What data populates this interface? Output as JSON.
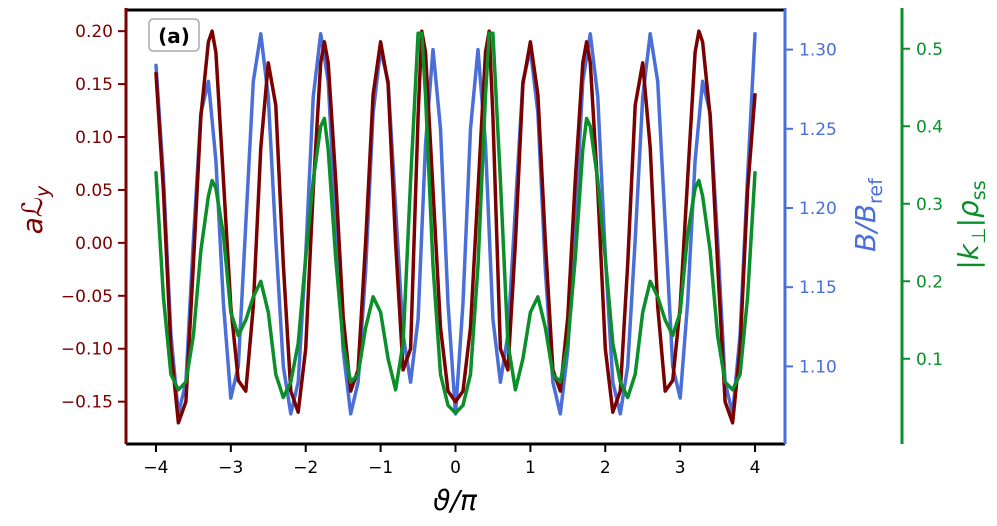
{
  "chart_data": {
    "type": "line",
    "panel_label": "(a)",
    "xlabel": "ϑ/π",
    "x_ticks": [
      -4,
      -3,
      -2,
      -1,
      0,
      1,
      2,
      3,
      4
    ],
    "x_tick_labels": [
      "−4",
      "−3",
      "−2",
      "−1",
      "0",
      "1",
      "2",
      "3",
      "4"
    ],
    "xlim": [
      -4.4,
      4.4
    ],
    "grid": false,
    "axes": [
      {
        "id": "left",
        "label_main": "a",
        "label_symbol": "ℒ",
        "label_sub": "y",
        "color": "#7b0000",
        "ylim": [
          -0.19,
          0.22
        ],
        "ticks": [
          -0.15,
          -0.1,
          -0.05,
          0.0,
          0.05,
          0.1,
          0.15,
          0.2
        ],
        "tick_labels": [
          "−0.15",
          "−0.10",
          "−0.05",
          "0.00",
          "0.05",
          "0.10",
          "0.15",
          "0.20"
        ]
      },
      {
        "id": "right1",
        "label_main": "B/B",
        "label_sub": "ref",
        "color": "#4a6fd8",
        "ylim": [
          1.051,
          1.325
        ],
        "ticks": [
          1.1,
          1.15,
          1.2,
          1.25,
          1.3
        ],
        "tick_labels": [
          "1.10",
          "1.15",
          "1.20",
          "1.25",
          "1.30"
        ]
      },
      {
        "id": "right2",
        "label_main": "|k",
        "label_perp": "⊥",
        "label_end": "|ρ",
        "label_sub": "ss",
        "color": "#0a8f2a",
        "ylim": [
          -0.01,
          0.55
        ],
        "ticks": [
          0.1,
          0.2,
          0.3,
          0.4,
          0.5
        ],
        "tick_labels": [
          "0.1",
          "0.2",
          "0.3",
          "0.4",
          "0.5"
        ]
      }
    ],
    "series": [
      {
        "id": "aLy",
        "axis": "left",
        "color": "#7b0000",
        "x": [
          -4.0,
          -3.9,
          -3.8,
          -3.7,
          -3.6,
          -3.5,
          -3.4,
          -3.3,
          -3.25,
          -3.2,
          -3.1,
          -3.0,
          -2.9,
          -2.8,
          -2.7,
          -2.6,
          -2.5,
          -2.4,
          -2.3,
          -2.2,
          -2.1,
          -2.0,
          -1.9,
          -1.8,
          -1.75,
          -1.7,
          -1.6,
          -1.5,
          -1.4,
          -1.3,
          -1.2,
          -1.1,
          -1.0,
          -0.9,
          -0.8,
          -0.7,
          -0.6,
          -0.5,
          -0.45,
          -0.4,
          -0.3,
          -0.2,
          -0.1,
          0.0,
          0.1,
          0.2,
          0.3,
          0.4,
          0.45,
          0.5,
          0.6,
          0.7,
          0.8,
          0.9,
          1.0,
          1.1,
          1.2,
          1.3,
          1.4,
          1.5,
          1.6,
          1.7,
          1.75,
          1.8,
          1.9,
          2.0,
          2.1,
          2.2,
          2.3,
          2.4,
          2.5,
          2.6,
          2.7,
          2.8,
          2.9,
          3.0,
          3.1,
          3.2,
          3.25,
          3.3,
          3.4,
          3.5,
          3.6,
          3.7,
          3.8,
          3.9,
          4.0
        ],
        "values": [
          0.16,
          0.05,
          -0.1,
          -0.17,
          -0.15,
          -0.02,
          0.12,
          0.19,
          0.2,
          0.18,
          0.06,
          -0.06,
          -0.13,
          -0.14,
          -0.06,
          0.09,
          0.17,
          0.13,
          -0.02,
          -0.14,
          -0.16,
          -0.1,
          0.05,
          0.17,
          0.19,
          0.17,
          0.06,
          -0.07,
          -0.14,
          -0.12,
          0.0,
          0.14,
          0.19,
          0.15,
          0.0,
          -0.12,
          -0.1,
          0.12,
          0.2,
          0.18,
          0.05,
          -0.08,
          -0.14,
          -0.15,
          -0.14,
          -0.08,
          0.05,
          0.18,
          0.2,
          0.12,
          -0.1,
          -0.12,
          0.0,
          0.15,
          0.19,
          0.14,
          0.0,
          -0.12,
          -0.14,
          -0.07,
          0.06,
          0.17,
          0.19,
          0.17,
          0.05,
          -0.1,
          -0.16,
          -0.14,
          -0.02,
          0.13,
          0.17,
          0.09,
          -0.06,
          -0.14,
          -0.13,
          -0.06,
          0.06,
          0.18,
          0.2,
          0.19,
          0.12,
          -0.02,
          -0.15,
          -0.17,
          -0.1,
          0.05,
          0.14
        ]
      },
      {
        "id": "B_over_Bref",
        "axis": "right1",
        "color": "#4a6fd8",
        "x": [
          -4.0,
          -3.9,
          -3.8,
          -3.7,
          -3.6,
          -3.5,
          -3.4,
          -3.3,
          -3.2,
          -3.1,
          -3.0,
          -2.9,
          -2.8,
          -2.7,
          -2.6,
          -2.5,
          -2.4,
          -2.3,
          -2.2,
          -2.1,
          -2.0,
          -1.9,
          -1.8,
          -1.7,
          -1.6,
          -1.5,
          -1.4,
          -1.3,
          -1.2,
          -1.1,
          -1.0,
          -0.9,
          -0.8,
          -0.7,
          -0.6,
          -0.5,
          -0.4,
          -0.3,
          -0.2,
          -0.1,
          0.0,
          0.1,
          0.2,
          0.3,
          0.4,
          0.5,
          0.6,
          0.7,
          0.8,
          0.9,
          1.0,
          1.1,
          1.2,
          1.3,
          1.4,
          1.5,
          1.6,
          1.7,
          1.8,
          1.9,
          2.0,
          2.1,
          2.2,
          2.3,
          2.4,
          2.5,
          2.6,
          2.7,
          2.8,
          2.9,
          3.0,
          3.1,
          3.2,
          3.3,
          3.4,
          3.5,
          3.6,
          3.7,
          3.8,
          3.9,
          4.0
        ],
        "values": [
          1.29,
          1.22,
          1.12,
          1.07,
          1.09,
          1.18,
          1.26,
          1.28,
          1.23,
          1.14,
          1.08,
          1.1,
          1.19,
          1.28,
          1.31,
          1.27,
          1.18,
          1.1,
          1.07,
          1.09,
          1.17,
          1.27,
          1.31,
          1.28,
          1.19,
          1.11,
          1.07,
          1.09,
          1.16,
          1.26,
          1.3,
          1.28,
          1.2,
          1.12,
          1.09,
          1.13,
          1.24,
          1.3,
          1.25,
          1.14,
          1.07,
          1.14,
          1.25,
          1.3,
          1.24,
          1.13,
          1.09,
          1.12,
          1.2,
          1.28,
          1.3,
          1.26,
          1.16,
          1.09,
          1.07,
          1.11,
          1.19,
          1.28,
          1.31,
          1.27,
          1.17,
          1.09,
          1.07,
          1.1,
          1.18,
          1.27,
          1.31,
          1.28,
          1.19,
          1.1,
          1.08,
          1.14,
          1.23,
          1.28,
          1.26,
          1.18,
          1.09,
          1.07,
          1.12,
          1.22,
          1.31
        ]
      },
      {
        "id": "k_perp_rho",
        "axis": "right2",
        "color": "#0a8f2a",
        "x": [
          -4.0,
          -3.9,
          -3.8,
          -3.7,
          -3.6,
          -3.5,
          -3.4,
          -3.3,
          -3.25,
          -3.2,
          -3.1,
          -3.0,
          -2.9,
          -2.8,
          -2.7,
          -2.6,
          -2.5,
          -2.4,
          -2.3,
          -2.2,
          -2.1,
          -2.0,
          -1.9,
          -1.8,
          -1.75,
          -1.7,
          -1.6,
          -1.5,
          -1.4,
          -1.3,
          -1.2,
          -1.1,
          -1.0,
          -0.9,
          -0.8,
          -0.7,
          -0.6,
          -0.5,
          -0.45,
          -0.4,
          -0.3,
          -0.2,
          -0.1,
          0.0,
          0.1,
          0.2,
          0.3,
          0.4,
          0.45,
          0.5,
          0.6,
          0.7,
          0.8,
          0.9,
          1.0,
          1.1,
          1.2,
          1.3,
          1.4,
          1.5,
          1.6,
          1.7,
          1.75,
          1.8,
          1.9,
          2.0,
          2.1,
          2.2,
          2.3,
          2.4,
          2.5,
          2.6,
          2.7,
          2.8,
          2.9,
          3.0,
          3.1,
          3.2,
          3.25,
          3.3,
          3.4,
          3.5,
          3.6,
          3.7,
          3.8,
          3.9,
          4.0
        ],
        "values": [
          0.34,
          0.18,
          0.08,
          0.06,
          0.07,
          0.13,
          0.24,
          0.31,
          0.33,
          0.32,
          0.26,
          0.16,
          0.13,
          0.15,
          0.18,
          0.2,
          0.16,
          0.08,
          0.05,
          0.07,
          0.12,
          0.23,
          0.33,
          0.4,
          0.41,
          0.37,
          0.23,
          0.12,
          0.07,
          0.08,
          0.14,
          0.18,
          0.16,
          0.1,
          0.06,
          0.12,
          0.33,
          0.52,
          0.52,
          0.44,
          0.22,
          0.08,
          0.04,
          0.03,
          0.04,
          0.08,
          0.22,
          0.44,
          0.52,
          0.52,
          0.33,
          0.12,
          0.06,
          0.1,
          0.16,
          0.18,
          0.14,
          0.08,
          0.07,
          0.12,
          0.23,
          0.37,
          0.41,
          0.4,
          0.33,
          0.23,
          0.12,
          0.07,
          0.05,
          0.08,
          0.16,
          0.2,
          0.18,
          0.15,
          0.13,
          0.16,
          0.26,
          0.32,
          0.33,
          0.31,
          0.24,
          0.13,
          0.07,
          0.06,
          0.08,
          0.18,
          0.34
        ]
      }
    ]
  }
}
